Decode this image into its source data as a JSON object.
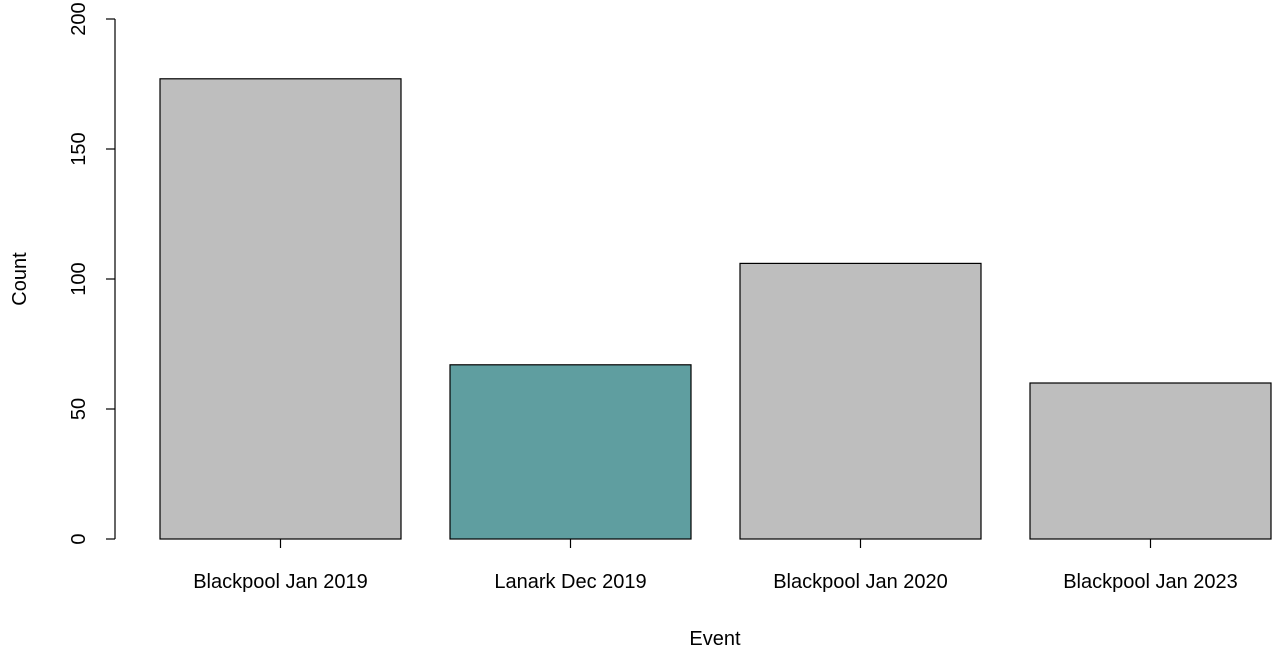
{
  "chart_data": {
    "type": "bar",
    "title": "",
    "xlabel": "Event",
    "ylabel": "Count",
    "categories": [
      "Blackpool Jan 2019",
      "Lanark Dec 2019",
      "Blackpool Jan 2020",
      "Blackpool Jan 2023"
    ],
    "values": [
      177,
      67,
      106,
      60
    ],
    "colors": [
      "#bebebe",
      "#5f9ea0",
      "#bebebe",
      "#bebebe"
    ],
    "ylim": [
      0,
      200
    ],
    "yticks": [
      0,
      50,
      100,
      150,
      200
    ],
    "ytick_labels": [
      "0",
      "50",
      "100",
      "150",
      "200"
    ],
    "grid": false,
    "legend": "none"
  }
}
